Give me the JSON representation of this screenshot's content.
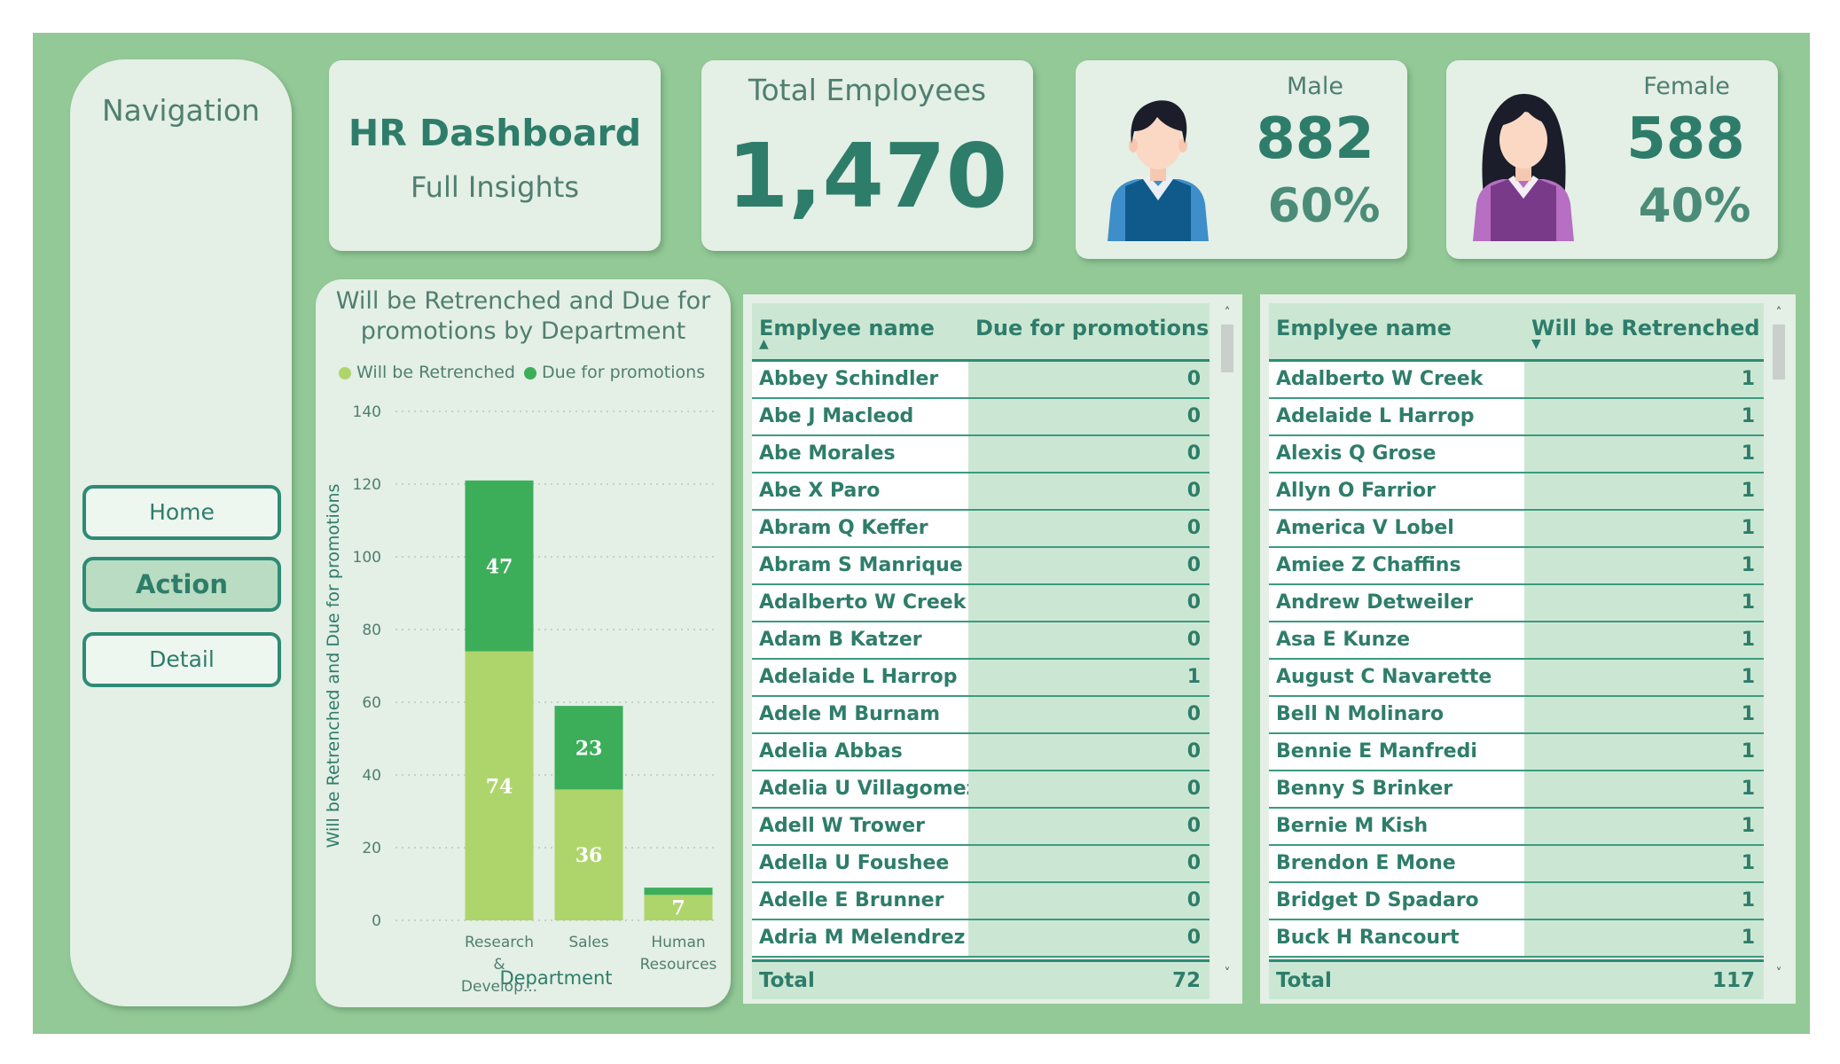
{
  "navigation": {
    "title": "Navigation",
    "buttons": [
      {
        "label": "Home"
      },
      {
        "label": "Action"
      },
      {
        "label": "Detail"
      }
    ]
  },
  "header": {
    "title": "HR Dashboard",
    "subtitle": "Full Insights"
  },
  "total_employees": {
    "label": "Total Employees",
    "value": "1,470"
  },
  "male": {
    "label": "Male",
    "count": "882",
    "percent": "60%",
    "icon": "male-avatar-icon"
  },
  "female": {
    "label": "Female",
    "count": "588",
    "percent": "40%",
    "icon": "female-avatar-icon"
  },
  "colors": {
    "accent": "#2e7d6a",
    "background": "#93c897",
    "panel": "#e4efe6",
    "retrenched": "#aed56b",
    "promotions": "#3cae5a",
    "male_shirt": "#0f5a8a",
    "female_shirt": "#7a3a8a"
  },
  "chart_data": {
    "type": "bar",
    "stacked": true,
    "title": "Will be Retrenched and Due for promotions by Department",
    "xlabel": "Department",
    "ylabel": "Will be Retrenched and Due for promotions",
    "categories": [
      "Research & Develop...",
      "Sales",
      "Human Resources"
    ],
    "series": [
      {
        "name": "Will be Retrenched",
        "values": [
          74,
          36,
          7
        ],
        "color": "#aed56b"
      },
      {
        "name": "Due for promotions",
        "values": [
          47,
          23,
          2
        ],
        "color": "#3cae5a"
      }
    ],
    "ylim": [
      0,
      140
    ],
    "yticks": [
      0,
      20,
      40,
      60,
      80,
      100,
      120,
      140
    ],
    "grid": true,
    "legend_position": "top"
  },
  "promotions_table": {
    "col1": "Emplyee name",
    "col2": "Due for promotions",
    "sort_indicator": "▲",
    "rows": [
      {
        "name": "Abbey Schindler",
        "value": "0"
      },
      {
        "name": "Abe J Macleod",
        "value": "0"
      },
      {
        "name": "Abe Morales",
        "value": "0"
      },
      {
        "name": "Abe X Paro",
        "value": "0"
      },
      {
        "name": "Abram Q Keffer",
        "value": "0"
      },
      {
        "name": "Abram S Manrique",
        "value": "0"
      },
      {
        "name": "Adalberto W Creek",
        "value": "0"
      },
      {
        "name": "Adam B Katzer",
        "value": "0"
      },
      {
        "name": "Adelaide L Harrop",
        "value": "1"
      },
      {
        "name": "Adele M Burnam",
        "value": "0"
      },
      {
        "name": "Adelia Abbas",
        "value": "0"
      },
      {
        "name": "Adelia U Villagomez",
        "value": "0"
      },
      {
        "name": "Adell W Trower",
        "value": "0"
      },
      {
        "name": "Adella U Foushee",
        "value": "0"
      },
      {
        "name": "Adelle E Brunner",
        "value": "0"
      },
      {
        "name": "Adria M Melendrez",
        "value": "0"
      }
    ],
    "total_label": "Total",
    "total_value": "72"
  },
  "retrenched_table": {
    "col1": "Emplyee name",
    "col2": "Will be Retrenched",
    "sort_indicator": "▼",
    "rows": [
      {
        "name": "Adalberto W Creek",
        "value": "1"
      },
      {
        "name": "Adelaide L Harrop",
        "value": "1"
      },
      {
        "name": "Alexis Q Grose",
        "value": "1"
      },
      {
        "name": "Allyn O Farrior",
        "value": "1"
      },
      {
        "name": "America V Lobel",
        "value": "1"
      },
      {
        "name": "Amiee Z Chaffins",
        "value": "1"
      },
      {
        "name": "Andrew Detweiler",
        "value": "1"
      },
      {
        "name": "Asa E Kunze",
        "value": "1"
      },
      {
        "name": "August C Navarette",
        "value": "1"
      },
      {
        "name": "Bell N Molinaro",
        "value": "1"
      },
      {
        "name": "Bennie E Manfredi",
        "value": "1"
      },
      {
        "name": "Benny S Brinker",
        "value": "1"
      },
      {
        "name": "Bernie M Kish",
        "value": "1"
      },
      {
        "name": "Brendon E Mone",
        "value": "1"
      },
      {
        "name": "Bridget D Spadaro",
        "value": "1"
      },
      {
        "name": "Buck H Rancourt",
        "value": "1"
      }
    ],
    "total_label": "Total",
    "total_value": "117"
  }
}
